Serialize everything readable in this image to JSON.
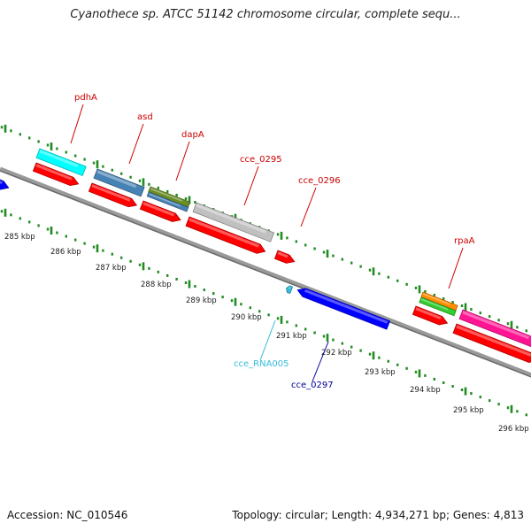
{
  "title": "Cyanothece sp. ATCC 51142 chromosome circular, complete sequ...",
  "footer": {
    "accession": "Accession: NC_010546",
    "summary": "Topology: circular; Length: 4,934,271 bp; Genes: 4,813"
  },
  "colors": {
    "backbone": "#808080",
    "ticks": "#228B22",
    "gene_label": "#cc0000",
    "rna_label": "#33bbdd",
    "reverse_label": "#000099"
  },
  "kbp_labels": [
    "285 kbp",
    "286 kbp",
    "287 kbp",
    "288 kbp",
    "289 kbp",
    "290 kbp",
    "291 kbp",
    "292 kbp",
    "293 kbp",
    "294 kbp",
    "295 kbp",
    "296 kbp"
  ],
  "gene_labels": [
    {
      "name": "pdhA",
      "color": "#cc0000"
    },
    {
      "name": "asd",
      "color": "#cc0000"
    },
    {
      "name": "dapA",
      "color": "#cc0000"
    },
    {
      "name": "cce_0295",
      "color": "#cc0000"
    },
    {
      "name": "cce_0296",
      "color": "#cc0000"
    },
    {
      "name": "rpaA",
      "color": "#cc0000"
    },
    {
      "name": "cce_RNA005",
      "color": "#33bbdd"
    },
    {
      "name": "cce_0297",
      "color": "#000099"
    }
  ],
  "features": [
    {
      "name": "left-edge-reverse-gene",
      "color": "#0000ff"
    },
    {
      "name": "pdhA-cds",
      "color": "#ff0000"
    },
    {
      "name": "pdhA-product",
      "color": "#00ffff"
    },
    {
      "name": "asd-cds",
      "color": "#ff0000"
    },
    {
      "name": "asd-product",
      "color": "#4682b4"
    },
    {
      "name": "dapA-cds",
      "color": "#ff0000"
    },
    {
      "name": "dapA-product-1",
      "color": "#6b8e23"
    },
    {
      "name": "dapA-product-2",
      "color": "#4682b4"
    },
    {
      "name": "cce_0295-cds",
      "color": "#ff0000"
    },
    {
      "name": "cce_0295-product",
      "color": "#c0c0c0"
    },
    {
      "name": "cce_0296-cds",
      "color": "#ff0000"
    },
    {
      "name": "cce_RNA005-rna",
      "color": "#33bbdd"
    },
    {
      "name": "cce_0297-cds",
      "color": "#0000ff"
    },
    {
      "name": "rpaA-cds",
      "color": "#ff0000"
    },
    {
      "name": "rpaA-product-1",
      "color": "#ff8c00"
    },
    {
      "name": "rpaA-product-2",
      "color": "#32cd32"
    },
    {
      "name": "right-gene-cds",
      "color": "#ff0000"
    },
    {
      "name": "right-gene-product",
      "color": "#ff1493"
    }
  ]
}
